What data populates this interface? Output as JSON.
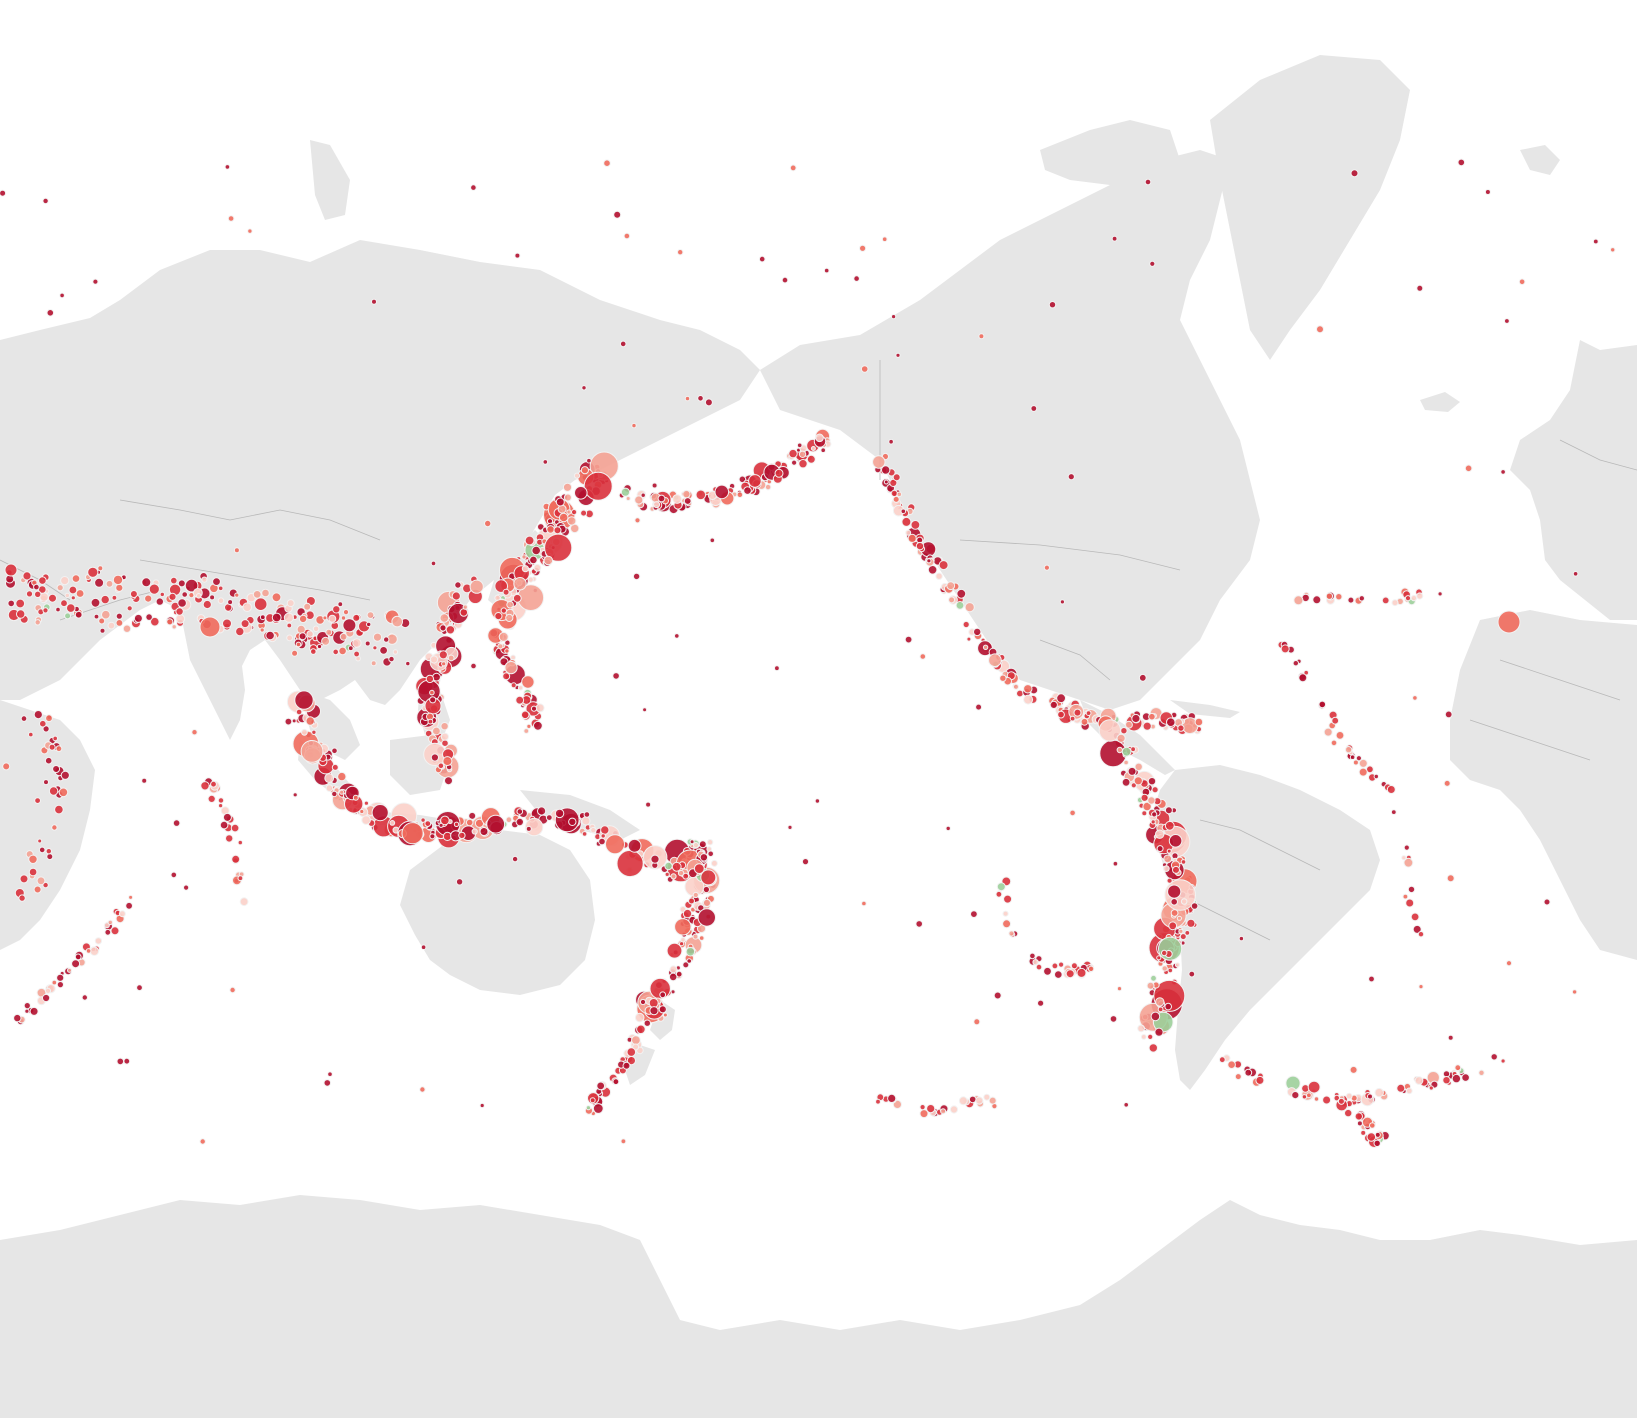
{
  "map": {
    "projection": "pacific-centered",
    "background_color": "#ffffff",
    "land_color": "#e6e6e6",
    "border_color": "#b8b8b8",
    "marker_halo_color": "#f2f2f2",
    "palette": {
      "deep": "#b2102f",
      "red": "#d9313c",
      "coral": "#ef6a5c",
      "salmon": "#f4a293",
      "pink": "#fbd0c9",
      "green": "#9ccf9a"
    }
  },
  "regions": [
    {
      "name": "pacific-ring-japan-kurils",
      "color_mix": "mixed",
      "intensity": "very-high"
    },
    {
      "name": "aleutian-arc",
      "color_mix": "mixed",
      "intensity": "high"
    },
    {
      "name": "philippines-indonesia",
      "color_mix": "mixed",
      "intensity": "very-high"
    },
    {
      "name": "tonga-kermadec-newzealand",
      "color_mix": "mixed",
      "intensity": "high"
    },
    {
      "name": "andes-south-america",
      "color_mix": "mixed",
      "intensity": "very-high"
    },
    {
      "name": "central-america-mexico",
      "color_mix": "mixed",
      "intensity": "high"
    },
    {
      "name": "mid-atlantic-ridge",
      "color_mix": "deep",
      "intensity": "low"
    },
    {
      "name": "alpine-himalayan-belt",
      "color_mix": "mixed",
      "intensity": "medium"
    },
    {
      "name": "scotia-arc",
      "color_mix": "mixed",
      "intensity": "medium"
    }
  ]
}
